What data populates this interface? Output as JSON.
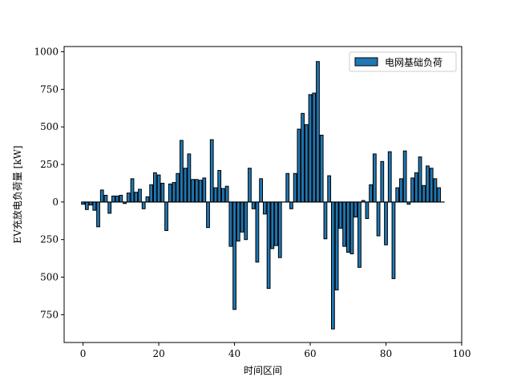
{
  "chart_data": {
    "type": "bar",
    "title": "",
    "xlabel": "时间区间",
    "ylabel": "EV充放电负荷量 [kW]",
    "xlim": [
      -5,
      100
    ],
    "ylim": [
      -935,
      1035
    ],
    "x_ticks": [
      0,
      20,
      40,
      60,
      80,
      100
    ],
    "y_ticks": [
      -750,
      -500,
      -250,
      0,
      250,
      500,
      750,
      1000
    ],
    "y_tick_labels": [
      "750",
      "500",
      "250",
      "0",
      "250",
      "500",
      "750",
      "1000"
    ],
    "grid": false,
    "legend_position": "top-right",
    "bar_color": "#1f77b4",
    "edge_color": "#000000",
    "series": [
      {
        "name": "电网基础负荷",
        "x": [
          0,
          1,
          2,
          3,
          4,
          5,
          6,
          7,
          8,
          9,
          10,
          11,
          12,
          13,
          14,
          15,
          16,
          17,
          18,
          19,
          20,
          21,
          22,
          23,
          24,
          25,
          26,
          27,
          28,
          29,
          30,
          31,
          32,
          33,
          34,
          35,
          36,
          37,
          38,
          39,
          40,
          41,
          42,
          43,
          44,
          45,
          46,
          47,
          48,
          49,
          50,
          51,
          52,
          53,
          54,
          55,
          56,
          57,
          58,
          59,
          60,
          61,
          62,
          63,
          64,
          65,
          66,
          67,
          68,
          69,
          70,
          71,
          72,
          73,
          74,
          75,
          76,
          77,
          78,
          79,
          80,
          81,
          82,
          83,
          84,
          85,
          86,
          87,
          88,
          89,
          90,
          91,
          92,
          93,
          94,
          95
        ],
        "values": [
          -15,
          -50,
          -20,
          -55,
          -165,
          80,
          45,
          -75,
          40,
          40,
          45,
          -10,
          60,
          155,
          65,
          85,
          -45,
          35,
          115,
          195,
          180,
          125,
          -190,
          120,
          130,
          190,
          410,
          225,
          320,
          150,
          150,
          145,
          160,
          -170,
          415,
          95,
          210,
          90,
          105,
          -295,
          -715,
          -260,
          -200,
          -250,
          225,
          -45,
          -400,
          155,
          -80,
          -575,
          -310,
          -290,
          -370,
          0,
          190,
          -45,
          190,
          485,
          590,
          515,
          715,
          725,
          935,
          445,
          -245,
          175,
          -845,
          -585,
          -175,
          -295,
          -335,
          -345,
          -100,
          -435,
          10,
          -110,
          115,
          320,
          -225,
          270,
          -285,
          335,
          -510,
          95,
          155,
          340,
          -15,
          160,
          195,
          300,
          110,
          240,
          225,
          155,
          95,
          0
        ]
      }
    ]
  }
}
